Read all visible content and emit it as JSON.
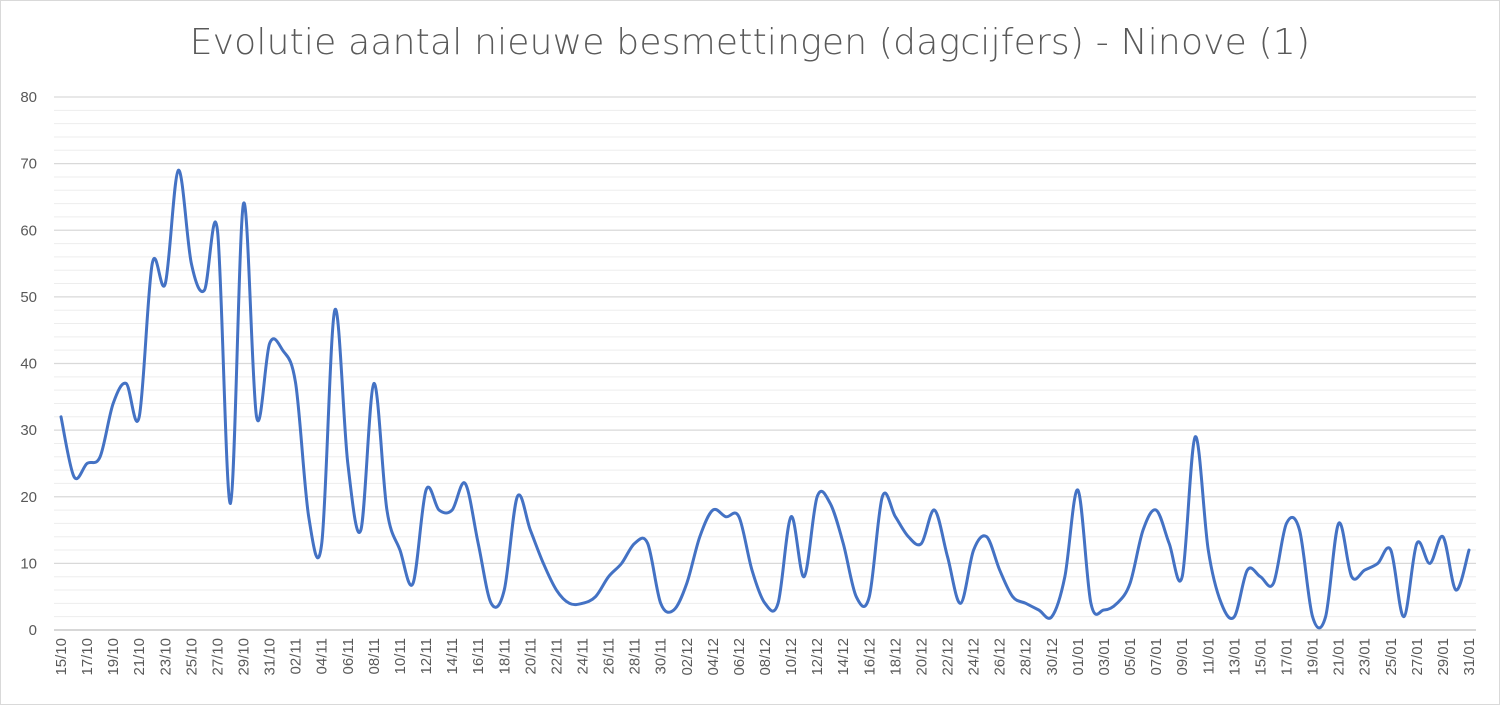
{
  "chart_data": {
    "type": "line",
    "title": "Evolutie aantal nieuwe besmettingen (dagcijfers) - Ninove (1)",
    "xlabel": "",
    "ylabel": "",
    "ylim": [
      0,
      80
    ],
    "yticks": [
      "0",
      "10",
      "20",
      "30",
      "40",
      "50",
      "60",
      "70",
      "80"
    ],
    "xtick_labels": [
      "15/10",
      "17/10",
      "19/10",
      "21/10",
      "23/10",
      "25/10",
      "27/10",
      "29/10",
      "31/10",
      "02/11",
      "04/11",
      "06/11",
      "08/11",
      "10/11",
      "12/11",
      "14/11",
      "16/11",
      "18/11",
      "20/11",
      "22/11",
      "24/11",
      "26/11",
      "28/11",
      "30/11",
      "02/12",
      "04/12",
      "06/12",
      "08/12",
      "10/12",
      "12/12",
      "14/12",
      "16/12",
      "18/12",
      "20/12",
      "22/12",
      "24/12",
      "26/12",
      "28/12",
      "30/12",
      "01/01",
      "03/01",
      "05/01",
      "07/01",
      "09/01",
      "11/01",
      "13/01",
      "15/01",
      "17/01",
      "19/01",
      "21/01",
      "23/01",
      "25/01",
      "27/01",
      "29/01",
      "31/01"
    ],
    "grid": true,
    "minor_grid": true,
    "legend": "none",
    "line_color": "#4472c4",
    "series": [
      {
        "values": [
          32,
          23,
          25,
          26,
          34,
          37,
          32,
          55,
          52,
          69,
          55,
          51,
          60,
          19,
          64,
          32,
          43,
          42,
          37,
          17,
          13,
          48,
          25,
          15,
          37,
          18,
          12,
          7,
          21,
          18,
          18,
          22,
          13,
          4,
          6,
          20,
          15,
          10,
          6,
          4,
          4,
          5,
          8,
          10,
          13,
          13,
          4,
          3,
          7,
          14,
          18,
          17,
          17,
          9,
          4,
          4,
          17,
          8,
          20,
          19,
          13,
          5,
          5,
          20,
          17,
          14,
          13,
          18,
          11,
          4,
          12,
          14,
          9,
          5,
          4,
          3,
          2,
          8,
          21,
          4,
          3,
          4,
          7,
          15,
          18,
          13,
          8,
          29,
          12,
          4,
          2,
          9,
          8,
          7,
          16,
          15,
          2,
          2,
          16,
          8,
          9,
          10,
          12,
          2,
          13,
          10,
          14,
          6,
          12
        ]
      }
    ]
  }
}
